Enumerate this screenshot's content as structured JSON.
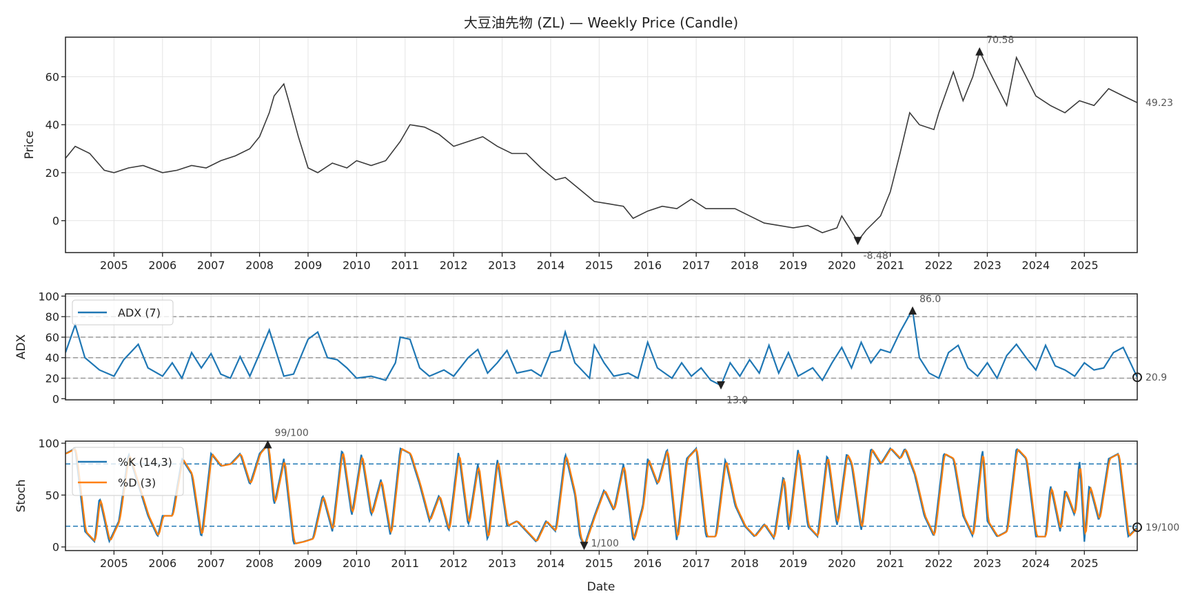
{
  "chart_data": [
    {
      "type": "line",
      "title": "大豆油先物 (ZL) — Weekly Price (Candle)",
      "ylabel": "Price",
      "xlim": [
        2004.0,
        2026.09
      ],
      "ylim": [
        -13.3,
        76.5
      ],
      "grid": true,
      "color": "#3a3a3a",
      "yticks": [
        0,
        20,
        40,
        60
      ],
      "xticks": [
        2005,
        2006,
        2007,
        2008,
        2009,
        2010,
        2011,
        2012,
        2013,
        2014,
        2015,
        2016,
        2017,
        2018,
        2019,
        2020,
        2021,
        2022,
        2023,
        2024,
        2025
      ],
      "x": [
        2004.0,
        2004.2,
        2004.5,
        2004.8,
        2005.0,
        2005.3,
        2005.6,
        2006.0,
        2006.3,
        2006.6,
        2006.9,
        2007.2,
        2007.5,
        2007.8,
        2008.0,
        2008.2,
        2008.3,
        2008.5,
        2008.6,
        2008.8,
        2009.0,
        2009.2,
        2009.5,
        2009.8,
        2010.0,
        2010.3,
        2010.6,
        2010.9,
        2011.1,
        2011.4,
        2011.7,
        2012.0,
        2012.3,
        2012.6,
        2012.9,
        2013.2,
        2013.5,
        2013.8,
        2014.1,
        2014.3,
        2014.6,
        2014.9,
        2015.2,
        2015.5,
        2015.7,
        2016.0,
        2016.3,
        2016.6,
        2016.9,
        2017.2,
        2017.5,
        2017.8,
        2018.1,
        2018.4,
        2018.7,
        2019.0,
        2019.3,
        2019.6,
        2019.9,
        2020.0,
        2020.33,
        2020.5,
        2020.8,
        2021.0,
        2021.2,
        2021.4,
        2021.6,
        2021.9,
        2022.0,
        2022.3,
        2022.5,
        2022.7,
        2022.84,
        2023.1,
        2023.4,
        2023.6,
        2023.8,
        2024.0,
        2024.3,
        2024.6,
        2024.9,
        2025.2,
        2025.5,
        2025.8,
        2026.09
      ],
      "values": [
        26,
        31,
        28,
        21,
        20,
        22,
        23,
        20,
        21,
        23,
        22,
        25,
        27,
        30,
        35,
        45,
        52,
        57,
        50,
        35,
        22,
        20,
        24,
        22,
        25,
        23,
        25,
        33,
        40,
        39,
        36,
        31,
        33,
        35,
        31,
        28,
        28,
        22,
        17,
        18,
        13,
        8,
        7,
        6,
        1,
        4,
        6,
        5,
        9,
        5,
        5,
        5,
        2,
        -1,
        -2,
        -3,
        -2,
        -5,
        -3,
        2,
        -8.48,
        -4,
        2,
        12,
        28,
        45,
        40,
        38,
        45,
        62,
        50,
        60,
        70.58,
        60,
        48,
        68,
        60,
        52,
        48,
        45,
        50,
        48,
        55,
        52,
        49.23
      ],
      "max": {
        "x": 2022.84,
        "value": 70.58,
        "label": "70.58"
      },
      "min": {
        "x": 2020.33,
        "value": -8.48,
        "label": "-8.48"
      },
      "last": {
        "value": 49.23,
        "label": "49.23"
      }
    },
    {
      "type": "line",
      "ylabel": "ADX",
      "xlim": [
        2004.0,
        2026.09
      ],
      "ylim": [
        -1.1,
        102.2
      ],
      "grid": true,
      "yticks": [
        0,
        20,
        40,
        60,
        80,
        100
      ],
      "reference_lines": [
        20,
        40,
        60,
        80
      ],
      "series": [
        {
          "name": "ADX (7)",
          "color": "#1f77b4",
          "x": [
            2004.0,
            2004.2,
            2004.4,
            2004.7,
            2005.0,
            2005.2,
            2005.5,
            2005.7,
            2006.0,
            2006.2,
            2006.4,
            2006.6,
            2006.8,
            2007.0,
            2007.2,
            2007.4,
            2007.6,
            2007.8,
            2008.0,
            2008.2,
            2008.5,
            2008.7,
            2009.0,
            2009.2,
            2009.4,
            2009.6,
            2009.8,
            2010.0,
            2010.3,
            2010.6,
            2010.8,
            2010.9,
            2011.1,
            2011.3,
            2011.5,
            2011.8,
            2012.0,
            2012.3,
            2012.5,
            2012.7,
            2012.9,
            2013.1,
            2013.3,
            2013.6,
            2013.8,
            2014.0,
            2014.2,
            2014.3,
            2014.5,
            2014.8,
            2014.9,
            2015.1,
            2015.3,
            2015.6,
            2015.8,
            2016.0,
            2016.2,
            2016.5,
            2016.7,
            2016.9,
            2017.1,
            2017.3,
            2017.51,
            2017.7,
            2017.9,
            2018.1,
            2018.3,
            2018.5,
            2018.7,
            2018.9,
            2019.1,
            2019.4,
            2019.6,
            2019.8,
            2020.0,
            2020.2,
            2020.4,
            2020.6,
            2020.8,
            2021.0,
            2021.2,
            2021.4,
            2021.46,
            2021.6,
            2021.8,
            2022.0,
            2022.2,
            2022.4,
            2022.6,
            2022.8,
            2023.0,
            2023.2,
            2023.4,
            2023.6,
            2023.8,
            2024.0,
            2024.2,
            2024.4,
            2024.6,
            2024.8,
            2025.0,
            2025.2,
            2025.4,
            2025.6,
            2025.8,
            2026.09
          ],
          "values": [
            45,
            72,
            40,
            28,
            22,
            38,
            53,
            30,
            22,
            35,
            20,
            45,
            30,
            44,
            24,
            20,
            41,
            22,
            44,
            67,
            22,
            24,
            58,
            65,
            40,
            38,
            30,
            20,
            22,
            18,
            35,
            60,
            58,
            30,
            22,
            28,
            22,
            40,
            48,
            25,
            35,
            47,
            25,
            28,
            22,
            45,
            47,
            65,
            35,
            20,
            52,
            35,
            22,
            25,
            20,
            55,
            30,
            20,
            35,
            22,
            30,
            18,
            13,
            35,
            22,
            38,
            25,
            52,
            25,
            45,
            22,
            30,
            18,
            35,
            50,
            30,
            55,
            35,
            48,
            45,
            65,
            82,
            86,
            40,
            25,
            20,
            45,
            52,
            30,
            22,
            35,
            20,
            42,
            53,
            40,
            28,
            52,
            32,
            28,
            22,
            35,
            28,
            30,
            45,
            50,
            20.9
          ]
        }
      ],
      "max": {
        "x": 2021.46,
        "value": 86.0,
        "label": "86.0"
      },
      "min": {
        "x": 2017.51,
        "value": 13.0,
        "label": "13.0"
      },
      "last": {
        "value": 20.9,
        "label": "20.9"
      }
    },
    {
      "type": "line",
      "ylabel": "Stoch",
      "xlabel": "Date",
      "xlim": [
        2004.0,
        2026.09
      ],
      "ylim": [
        -3.5,
        102
      ],
      "grid": true,
      "yticks": [
        0,
        50,
        100
      ],
      "reference_lines": [
        20,
        80
      ],
      "reference_color": "#1f77b4",
      "series": [
        {
          "name": "%K (14,3)",
          "color": "#1f77b4",
          "x": [
            2004.0,
            2004.2,
            2004.4,
            2004.6,
            2004.7,
            2004.9,
            2005.1,
            2005.3,
            2005.5,
            2005.7,
            2005.9,
            2006.0,
            2006.2,
            2006.4,
            2006.6,
            2006.8,
            2007.0,
            2007.2,
            2007.4,
            2007.6,
            2007.8,
            2008.0,
            2008.17,
            2008.3,
            2008.5,
            2008.7,
            2008.9,
            2009.1,
            2009.3,
            2009.5,
            2009.7,
            2009.9,
            2010.1,
            2010.3,
            2010.5,
            2010.7,
            2010.9,
            2011.1,
            2011.3,
            2011.5,
            2011.7,
            2011.9,
            2012.1,
            2012.3,
            2012.5,
            2012.7,
            2012.9,
            2013.1,
            2013.3,
            2013.5,
            2013.7,
            2013.9,
            2014.1,
            2014.3,
            2014.5,
            2014.6,
            2014.69,
            2014.9,
            2015.1,
            2015.3,
            2015.5,
            2015.7,
            2015.9,
            2016.0,
            2016.2,
            2016.4,
            2016.6,
            2016.8,
            2017.0,
            2017.2,
            2017.4,
            2017.6,
            2017.8,
            2018.0,
            2018.2,
            2018.4,
            2018.6,
            2018.8,
            2018.9,
            2019.1,
            2019.3,
            2019.5,
            2019.7,
            2019.9,
            2020.1,
            2020.2,
            2020.4,
            2020.6,
            2020.8,
            2021.0,
            2021.2,
            2021.3,
            2021.5,
            2021.7,
            2021.9,
            2022.1,
            2022.3,
            2022.5,
            2022.7,
            2022.9,
            2023.0,
            2023.2,
            2023.4,
            2023.6,
            2023.8,
            2024.0,
            2024.2,
            2024.3,
            2024.5,
            2024.6,
            2024.8,
            2024.9,
            2025.0,
            2025.1,
            2025.3,
            2025.5,
            2025.7,
            2025.9,
            2026.09
          ],
          "values": [
            90,
            95,
            15,
            5,
            48,
            5,
            25,
            90,
            60,
            30,
            10,
            30,
            30,
            85,
            70,
            8,
            90,
            78,
            80,
            90,
            60,
            90,
            99,
            40,
            85,
            3,
            5,
            8,
            50,
            15,
            95,
            30,
            90,
            30,
            65,
            10,
            95,
            90,
            60,
            25,
            50,
            15,
            92,
            20,
            80,
            5,
            85,
            20,
            25,
            15,
            5,
            25,
            15,
            90,
            50,
            10,
            1,
            30,
            55,
            35,
            80,
            5,
            40,
            85,
            60,
            95,
            5,
            85,
            95,
            10,
            10,
            85,
            40,
            20,
            10,
            22,
            8,
            70,
            15,
            95,
            20,
            10,
            90,
            20,
            90,
            80,
            15,
            95,
            80,
            95,
            85,
            95,
            70,
            30,
            10,
            90,
            85,
            30,
            10,
            95,
            25,
            10,
            15,
            95,
            85,
            10,
            10,
            60,
            15,
            55,
            30,
            85,
            5,
            60,
            25,
            85,
            90,
            10,
            19
          ]
        },
        {
          "name": "%D (3)",
          "color": "#ff7f0e"
        }
      ],
      "max": {
        "x": 2008.17,
        "value": 99,
        "label": "99/100"
      },
      "min": {
        "x": 2014.69,
        "value": 1,
        "label": "1/100"
      },
      "last": {
        "value": 19,
        "label": "19/100"
      }
    }
  ]
}
